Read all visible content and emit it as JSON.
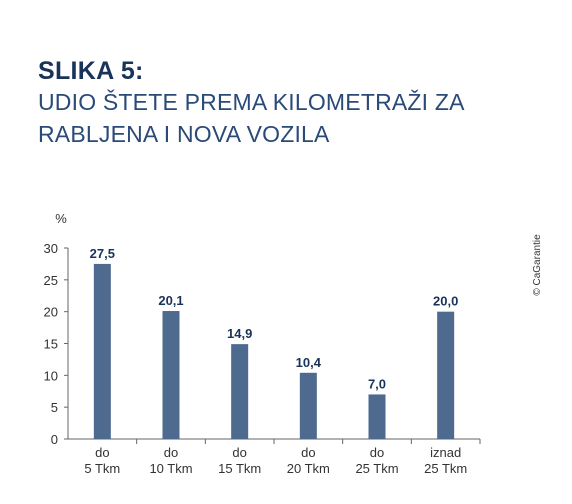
{
  "figure": {
    "label": "SLIKA 5:",
    "title": "UDIO ŠTETE PREMA KILOMETRAŽI ZA RABLJENA I NOVA VOZILA"
  },
  "credit": "© CaGarantie",
  "colors": {
    "bar": "#4e6a8f",
    "heading": "#1a3358",
    "axis": "#666666"
  },
  "chart_data": {
    "type": "bar",
    "ylabel": "%",
    "ylim": [
      0,
      30
    ],
    "yticks": [
      0,
      5,
      10,
      15,
      20,
      25,
      30
    ],
    "categories": [
      [
        "do",
        "5 Tkm"
      ],
      [
        "do",
        "10 Tkm"
      ],
      [
        "do",
        "15 Tkm"
      ],
      [
        "do",
        "20 Tkm"
      ],
      [
        "do",
        "25 Tkm"
      ],
      [
        "iznad",
        "25 Tkm"
      ]
    ],
    "values": [
      27.5,
      20.1,
      14.9,
      10.4,
      7.0,
      20.0
    ],
    "data_labels": [
      "27,5",
      "20,1",
      "14,9",
      "10,4",
      "7,0",
      "20,0"
    ],
    "grid": false
  }
}
